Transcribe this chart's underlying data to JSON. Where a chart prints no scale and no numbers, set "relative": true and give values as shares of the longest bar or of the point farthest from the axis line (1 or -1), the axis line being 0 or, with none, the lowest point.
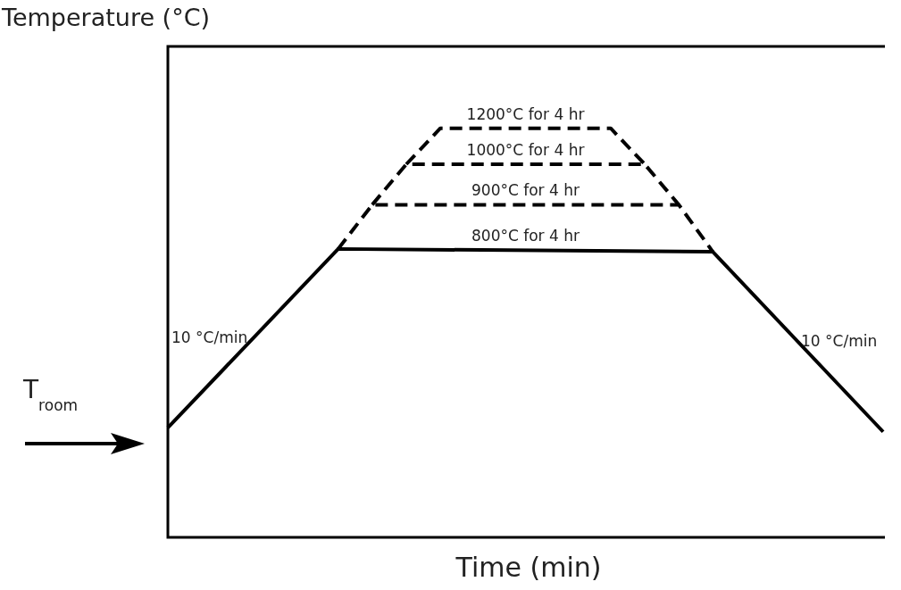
{
  "chart_data": {
    "type": "line",
    "xlabel": "Time (min)",
    "ylabel": "Temperature (°C)",
    "relative": true,
    "legend": false,
    "marker": "none",
    "categories": [
      null,
      null,
      null,
      null,
      null,
      null,
      null,
      null,
      null,
      null,
      null,
      null,
      null,
      null,
      null,
      null,
      null,
      null,
      null,
      null,
      null,
      null
    ],
    "series": [
      {
        "color": "#000000",
        "line_style": "solid",
        "values": [
          0.268,
          null,
          null,
          null,
          null,
          0.705,
          null,
          null,
          null,
          null,
          null,
          null,
          null,
          null,
          null,
          null,
          0.698,
          null,
          null,
          null,
          null,
          0.258
        ]
      },
      {
        "color": "#000000",
        "line_style": "dashed",
        "values": [
          null,
          null,
          null,
          null,
          null,
          0.705,
          0.813,
          null,
          null,
          null,
          null,
          null,
          null,
          null,
          null,
          0.813,
          0.698,
          null,
          null,
          null,
          null,
          null
        ]
      },
      {
        "color": "#000000",
        "line_style": "dashed",
        "values": [
          null,
          null,
          null,
          null,
          null,
          null,
          0.813,
          0.912,
          null,
          null,
          null,
          null,
          null,
          null,
          0.912,
          0.813,
          null,
          null,
          null,
          null,
          null,
          null
        ]
      },
      {
        "color": "#000000",
        "line_style": "dashed",
        "values": [
          null,
          null,
          null,
          null,
          null,
          null,
          null,
          0.912,
          1.0,
          null,
          null,
          null,
          null,
          1.0,
          0.912,
          null,
          null,
          null,
          null,
          null,
          null,
          null
        ]
      }
    ],
    "annotations": [
      {
        "text": "1200°C for 4 hr",
        "y": 1.0
      },
      {
        "text": "1000°C for 4 hr",
        "y": 0.912
      },
      {
        "text": "900°C for 4 hr",
        "y": 0.813
      },
      {
        "text": "800°C for 4 hr",
        "y": 0.703
      },
      "10 °C/min",
      "10 °C/min",
      "T$_{room}$"
    ]
  }
}
